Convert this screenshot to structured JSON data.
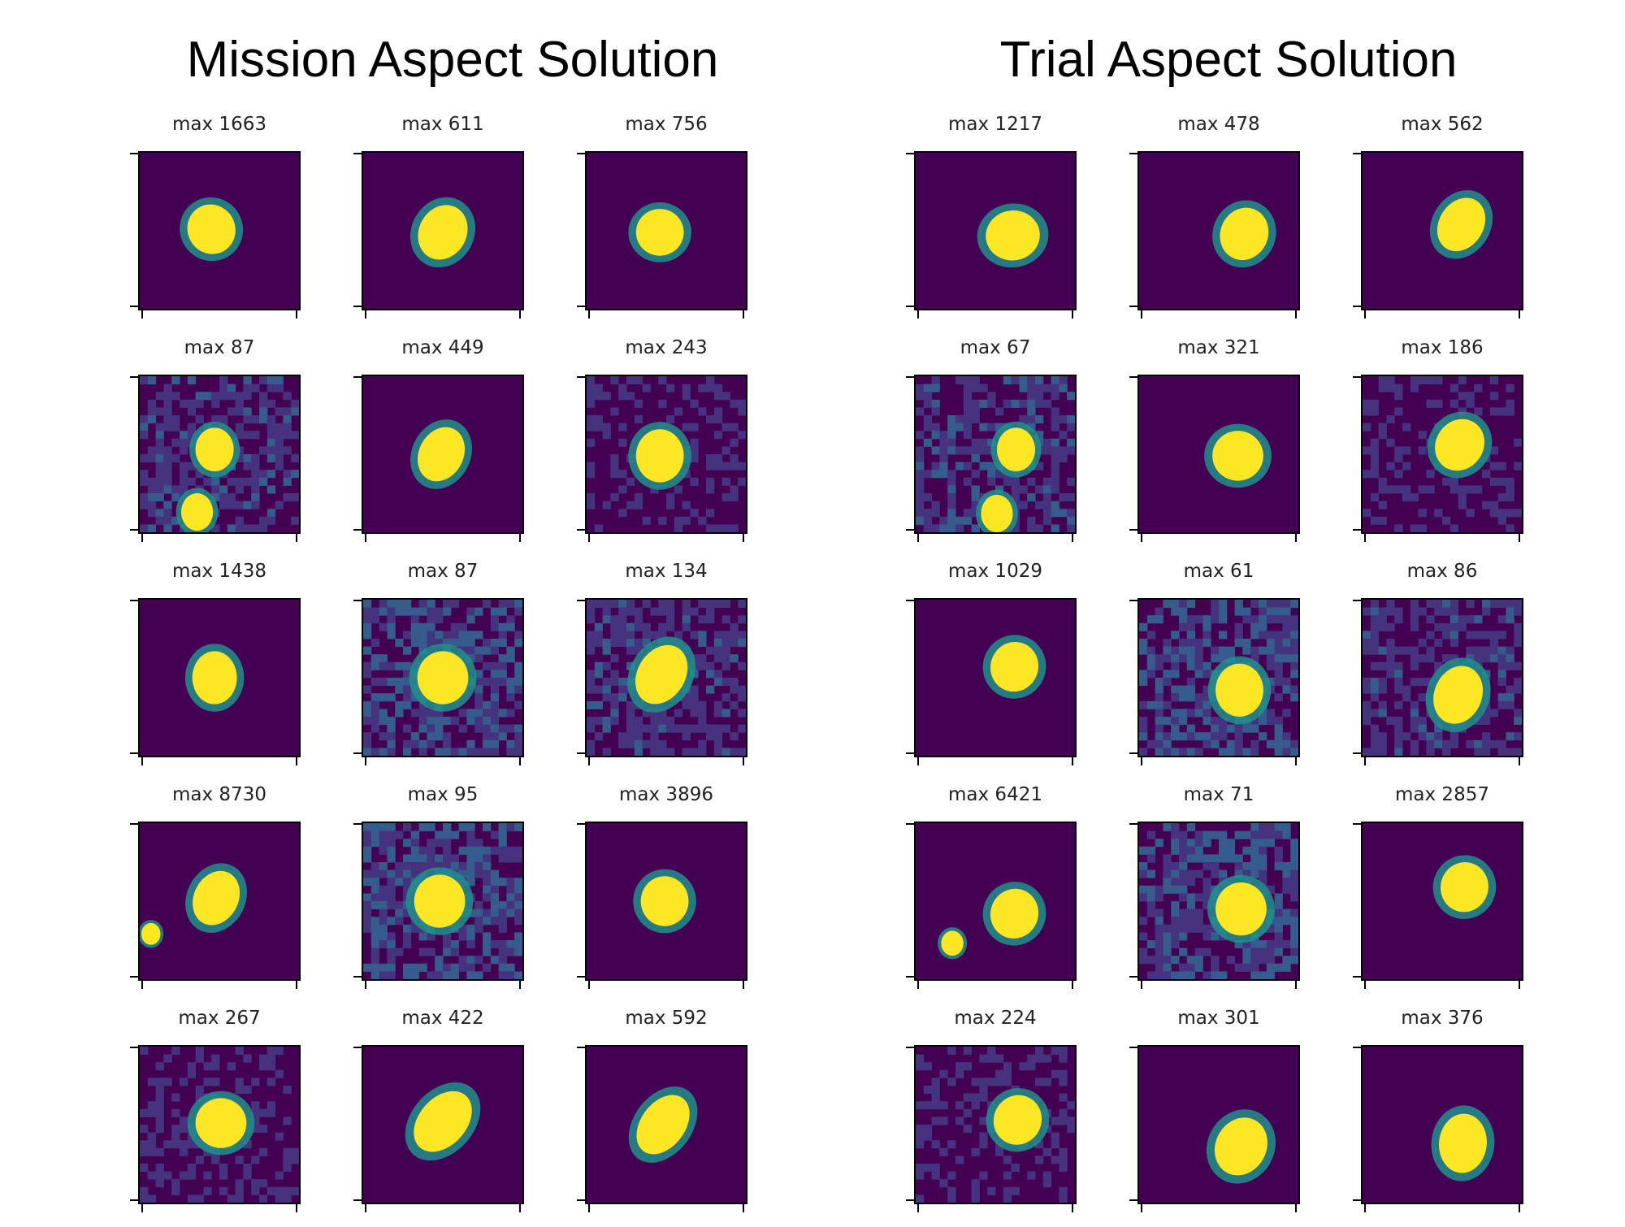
{
  "chart_data": [
    {
      "type": "heatmap",
      "title": "Mission Aspect Solution",
      "colormap": "viridis",
      "background_color": "#440154",
      "star_color": "#fde725",
      "halo_color": "#21918c",
      "tiles": [
        {
          "label": "max 1663",
          "max": 1663,
          "sources": [
            {
              "x": 0.45,
              "y": 0.49,
              "rx": 0.15,
              "ry": 0.16,
              "tilt": -20
            }
          ],
          "noise": 0.05
        },
        {
          "label": "max 611",
          "max": 611,
          "sources": [
            {
              "x": 0.5,
              "y": 0.51,
              "rx": 0.15,
              "ry": 0.18,
              "tilt": 25
            }
          ],
          "noise": 0.1
        },
        {
          "label": "max 756",
          "max": 756,
          "sources": [
            {
              "x": 0.46,
              "y": 0.51,
              "rx": 0.15,
              "ry": 0.15,
              "tilt": 0
            }
          ],
          "noise": 0.08
        },
        {
          "label": "max 87",
          "max": 87,
          "sources": [
            {
              "x": 0.47,
              "y": 0.47,
              "rx": 0.12,
              "ry": 0.14,
              "tilt": 0
            },
            {
              "x": 0.36,
              "y": 0.87,
              "rx": 0.1,
              "ry": 0.12,
              "tilt": 0
            }
          ],
          "noise": 0.45
        },
        {
          "label": "max 449",
          "max": 449,
          "sources": [
            {
              "x": 0.49,
              "y": 0.5,
              "rx": 0.14,
              "ry": 0.18,
              "tilt": 25
            }
          ],
          "noise": 0.15
        },
        {
          "label": "max 243",
          "max": 243,
          "sources": [
            {
              "x": 0.46,
              "y": 0.51,
              "rx": 0.15,
              "ry": 0.17,
              "tilt": 0
            }
          ],
          "noise": 0.3
        },
        {
          "label": "max 1438",
          "max": 1438,
          "sources": [
            {
              "x": 0.47,
              "y": 0.5,
              "rx": 0.14,
              "ry": 0.17,
              "tilt": 0
            }
          ],
          "noise": 0.06
        },
        {
          "label": "max 87",
          "max": 87,
          "sources": [
            {
              "x": 0.5,
              "y": 0.5,
              "rx": 0.16,
              "ry": 0.17,
              "tilt": 0
            }
          ],
          "noise": 0.6
        },
        {
          "label": "max 134",
          "max": 134,
          "sources": [
            {
              "x": 0.47,
              "y": 0.48,
              "rx": 0.15,
              "ry": 0.2,
              "tilt": 30
            }
          ],
          "noise": 0.45
        },
        {
          "label": "max 8730",
          "max": 8730,
          "sources": [
            {
              "x": 0.48,
              "y": 0.48,
              "rx": 0.14,
              "ry": 0.18,
              "tilt": 25
            },
            {
              "x": 0.07,
              "y": 0.71,
              "rx": 0.06,
              "ry": 0.07,
              "tilt": 0
            }
          ],
          "noise": 0.03
        },
        {
          "label": "max 95",
          "max": 95,
          "sources": [
            {
              "x": 0.48,
              "y": 0.5,
              "rx": 0.16,
              "ry": 0.17,
              "tilt": 0
            }
          ],
          "noise": 0.6
        },
        {
          "label": "max 3896",
          "max": 3896,
          "sources": [
            {
              "x": 0.49,
              "y": 0.5,
              "rx": 0.15,
              "ry": 0.16,
              "tilt": 0
            }
          ],
          "noise": 0.04
        },
        {
          "label": "max 267",
          "max": 267,
          "sources": [
            {
              "x": 0.51,
              "y": 0.49,
              "rx": 0.16,
              "ry": 0.16,
              "tilt": 0
            }
          ],
          "noise": 0.3
        },
        {
          "label": "max 422",
          "max": 422,
          "sources": [
            {
              "x": 0.5,
              "y": 0.48,
              "rx": 0.15,
              "ry": 0.22,
              "tilt": 40
            }
          ],
          "noise": 0.15
        },
        {
          "label": "max 592",
          "max": 592,
          "sources": [
            {
              "x": 0.48,
              "y": 0.5,
              "rx": 0.14,
              "ry": 0.21,
              "tilt": 35
            }
          ],
          "noise": 0.12
        }
      ]
    },
    {
      "type": "heatmap",
      "title": "Trial Aspect Solution",
      "colormap": "viridis",
      "background_color": "#440154",
      "star_color": "#fde725",
      "halo_color": "#21918c",
      "tiles": [
        {
          "label": "max 1217",
          "max": 1217,
          "sources": [
            {
              "x": 0.61,
              "y": 0.53,
              "rx": 0.17,
              "ry": 0.16,
              "tilt": -10
            }
          ],
          "noise": 0.06
        },
        {
          "label": "max 478",
          "max": 478,
          "sources": [
            {
              "x": 0.66,
              "y": 0.52,
              "rx": 0.15,
              "ry": 0.17,
              "tilt": 20
            }
          ],
          "noise": 0.12
        },
        {
          "label": "max 562",
          "max": 562,
          "sources": [
            {
              "x": 0.62,
              "y": 0.46,
              "rx": 0.14,
              "ry": 0.18,
              "tilt": 30
            }
          ],
          "noise": 0.1
        },
        {
          "label": "max 67",
          "max": 67,
          "sources": [
            {
              "x": 0.63,
              "y": 0.47,
              "rx": 0.12,
              "ry": 0.14,
              "tilt": 0
            },
            {
              "x": 0.51,
              "y": 0.88,
              "rx": 0.1,
              "ry": 0.12,
              "tilt": 0
            }
          ],
          "noise": 0.5
        },
        {
          "label": "max 321",
          "max": 321,
          "sources": [
            {
              "x": 0.62,
              "y": 0.51,
              "rx": 0.16,
              "ry": 0.16,
              "tilt": 0
            }
          ],
          "noise": 0.2
        },
        {
          "label": "max 186",
          "max": 186,
          "sources": [
            {
              "x": 0.61,
              "y": 0.44,
              "rx": 0.15,
              "ry": 0.17,
              "tilt": 30
            }
          ],
          "noise": 0.3
        },
        {
          "label": "max 1029",
          "max": 1029,
          "sources": [
            {
              "x": 0.62,
              "y": 0.43,
              "rx": 0.15,
              "ry": 0.16,
              "tilt": 15
            }
          ],
          "noise": 0.06
        },
        {
          "label": "max 61",
          "max": 61,
          "sources": [
            {
              "x": 0.63,
              "y": 0.58,
              "rx": 0.15,
              "ry": 0.17,
              "tilt": 0
            }
          ],
          "noise": 0.6
        },
        {
          "label": "max 86",
          "max": 86,
          "sources": [
            {
              "x": 0.6,
              "y": 0.61,
              "rx": 0.15,
              "ry": 0.19,
              "tilt": 20
            }
          ],
          "noise": 0.45
        },
        {
          "label": "max 6421",
          "max": 6421,
          "sources": [
            {
              "x": 0.62,
              "y": 0.58,
              "rx": 0.15,
              "ry": 0.16,
              "tilt": 15
            },
            {
              "x": 0.23,
              "y": 0.77,
              "rx": 0.07,
              "ry": 0.08,
              "tilt": 0
            }
          ],
          "noise": 0.03
        },
        {
          "label": "max 71",
          "max": 71,
          "sources": [
            {
              "x": 0.64,
              "y": 0.55,
              "rx": 0.16,
              "ry": 0.17,
              "tilt": 0
            }
          ],
          "noise": 0.6
        },
        {
          "label": "max 2857",
          "max": 2857,
          "sources": [
            {
              "x": 0.64,
              "y": 0.41,
              "rx": 0.15,
              "ry": 0.16,
              "tilt": 10
            }
          ],
          "noise": 0.04
        },
        {
          "label": "max 224",
          "max": 224,
          "sources": [
            {
              "x": 0.64,
              "y": 0.47,
              "rx": 0.15,
              "ry": 0.16,
              "tilt": 20
            }
          ],
          "noise": 0.3
        },
        {
          "label": "max 301",
          "max": 301,
          "sources": [
            {
              "x": 0.64,
              "y": 0.64,
              "rx": 0.16,
              "ry": 0.19,
              "tilt": 25
            }
          ],
          "noise": 0.15
        },
        {
          "label": "max 376",
          "max": 376,
          "sources": [
            {
              "x": 0.63,
              "y": 0.62,
              "rx": 0.15,
              "ry": 0.19,
              "tilt": 5
            }
          ],
          "noise": 0.15
        }
      ]
    }
  ]
}
